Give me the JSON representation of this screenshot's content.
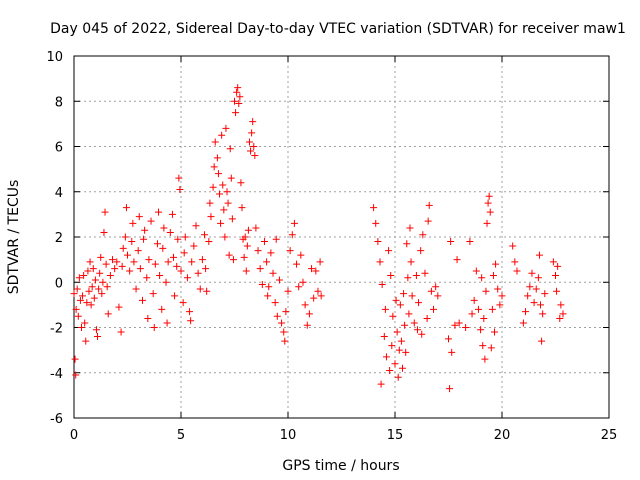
{
  "chart_data": {
    "type": "scatter",
    "title": "Day 045 of 2022, Sidereal Day-to-day VTEC variation (SDTVAR) for receiver maw1",
    "xlabel": "GPS time / hours",
    "ylabel": "SDTVAR / TECUs",
    "xlim": [
      0,
      25
    ],
    "ylim": [
      -6,
      10
    ],
    "xticks": [
      0,
      5,
      10,
      15,
      20,
      25
    ],
    "yticks": [
      -6,
      -4,
      -2,
      0,
      2,
      4,
      6,
      8,
      10
    ],
    "xtick_labels": [
      "0",
      "5",
      "10",
      "15",
      "20",
      "25"
    ],
    "ytick_labels": [
      "-6",
      "-4",
      "-2",
      "0",
      "2",
      "4",
      "6",
      "8",
      "10"
    ],
    "grid": true,
    "marker": "+",
    "color": "#ff0000",
    "series": [
      {
        "name": "SDTVAR",
        "points": [
          [
            0.0,
            -0.5
          ],
          [
            0.05,
            -3.4
          ],
          [
            0.08,
            -4.1
          ],
          [
            0.1,
            -1.2
          ],
          [
            0.15,
            -0.3
          ],
          [
            0.2,
            -1.5
          ],
          [
            0.25,
            0.2
          ],
          [
            0.3,
            -0.8
          ],
          [
            0.35,
            -2.0
          ],
          [
            0.4,
            -0.6
          ],
          [
            0.45,
            0.3
          ],
          [
            0.5,
            -1.8
          ],
          [
            0.55,
            -2.6
          ],
          [
            0.6,
            -0.9
          ],
          [
            0.65,
            0.5
          ],
          [
            0.7,
            -0.4
          ],
          [
            0.75,
            0.9
          ],
          [
            0.8,
            -1.0
          ],
          [
            0.85,
            -0.2
          ],
          [
            0.9,
            0.6
          ],
          [
            0.95,
            -0.7
          ],
          [
            1.0,
            0.1
          ],
          [
            1.05,
            -2.1
          ],
          [
            1.1,
            -2.4
          ],
          [
            1.15,
            -0.3
          ],
          [
            1.2,
            0.4
          ],
          [
            1.25,
            1.1
          ],
          [
            1.3,
            -0.5
          ],
          [
            1.35,
            0.0
          ],
          [
            1.4,
            2.2
          ],
          [
            1.45,
            3.1
          ],
          [
            1.5,
            0.8
          ],
          [
            1.55,
            -0.2
          ],
          [
            1.6,
            -1.4
          ],
          [
            1.7,
            0.3
          ],
          [
            1.8,
            1.0
          ],
          [
            1.9,
            0.6
          ],
          [
            2.0,
            0.9
          ],
          [
            2.1,
            -1.1
          ],
          [
            2.2,
            -2.2
          ],
          [
            2.25,
            0.7
          ],
          [
            2.3,
            1.5
          ],
          [
            2.4,
            2.0
          ],
          [
            2.45,
            3.3
          ],
          [
            2.5,
            1.2
          ],
          [
            2.6,
            0.5
          ],
          [
            2.7,
            1.8
          ],
          [
            2.75,
            2.6
          ],
          [
            2.8,
            0.9
          ],
          [
            2.9,
            -0.3
          ],
          [
            3.0,
            1.4
          ],
          [
            3.05,
            2.9
          ],
          [
            3.1,
            0.6
          ],
          [
            3.2,
            -0.8
          ],
          [
            3.25,
            1.9
          ],
          [
            3.3,
            2.3
          ],
          [
            3.4,
            0.2
          ],
          [
            3.45,
            -1.6
          ],
          [
            3.5,
            1.0
          ],
          [
            3.6,
            2.7
          ],
          [
            3.7,
            -0.5
          ],
          [
            3.75,
            -2.0
          ],
          [
            3.8,
            0.8
          ],
          [
            3.9,
            1.7
          ],
          [
            3.95,
            3.1
          ],
          [
            4.0,
            0.3
          ],
          [
            4.1,
            -1.2
          ],
          [
            4.15,
            1.5
          ],
          [
            4.2,
            2.4
          ],
          [
            4.3,
            0.0
          ],
          [
            4.35,
            -1.8
          ],
          [
            4.4,
            0.9
          ],
          [
            4.5,
            2.2
          ],
          [
            4.6,
            3.0
          ],
          [
            4.65,
            1.1
          ],
          [
            4.7,
            -0.6
          ],
          [
            4.8,
            0.7
          ],
          [
            4.85,
            1.9
          ],
          [
            4.9,
            4.6
          ],
          [
            4.95,
            4.1
          ],
          [
            5.0,
            0.5
          ],
          [
            5.1,
            -0.9
          ],
          [
            5.15,
            1.3
          ],
          [
            5.2,
            2.0
          ],
          [
            5.3,
            0.2
          ],
          [
            5.4,
            -1.3
          ],
          [
            5.45,
            -1.7
          ],
          [
            5.5,
            0.9
          ],
          [
            5.6,
            1.6
          ],
          [
            5.7,
            2.5
          ],
          [
            5.8,
            0.4
          ],
          [
            5.9,
            -0.3
          ],
          [
            6.0,
            1.0
          ],
          [
            6.1,
            2.1
          ],
          [
            6.15,
            0.6
          ],
          [
            6.2,
            -0.4
          ],
          [
            6.3,
            1.8
          ],
          [
            6.35,
            3.5
          ],
          [
            6.4,
            2.9
          ],
          [
            6.5,
            4.2
          ],
          [
            6.55,
            5.1
          ],
          [
            6.6,
            6.2
          ],
          [
            6.7,
            5.5
          ],
          [
            6.75,
            4.8
          ],
          [
            6.8,
            3.9
          ],
          [
            6.85,
            2.6
          ],
          [
            6.9,
            6.5
          ],
          [
            6.95,
            4.3
          ],
          [
            7.0,
            3.2
          ],
          [
            7.05,
            2.0
          ],
          [
            7.1,
            6.8
          ],
          [
            7.15,
            4.0
          ],
          [
            7.2,
            3.5
          ],
          [
            7.25,
            1.2
          ],
          [
            7.3,
            5.9
          ],
          [
            7.35,
            4.6
          ],
          [
            7.4,
            2.8
          ],
          [
            7.45,
            1.0
          ],
          [
            7.5,
            8.0
          ],
          [
            7.55,
            7.5
          ],
          [
            7.6,
            8.4
          ],
          [
            7.65,
            8.6
          ],
          [
            7.7,
            7.9
          ],
          [
            7.75,
            8.2
          ],
          [
            7.8,
            4.4
          ],
          [
            7.85,
            3.3
          ],
          [
            7.9,
            1.9
          ],
          [
            7.95,
            1.1
          ],
          [
            8.0,
            2.0
          ],
          [
            8.05,
            0.5
          ],
          [
            8.1,
            1.6
          ],
          [
            8.15,
            2.3
          ],
          [
            8.2,
            6.2
          ],
          [
            8.25,
            5.8
          ],
          [
            8.3,
            6.6
          ],
          [
            8.35,
            7.1
          ],
          [
            8.4,
            6.0
          ],
          [
            8.45,
            5.6
          ],
          [
            8.5,
            2.4
          ],
          [
            8.6,
            1.4
          ],
          [
            8.7,
            0.6
          ],
          [
            8.8,
            -0.1
          ],
          [
            8.9,
            1.8
          ],
          [
            9.0,
            0.9
          ],
          [
            9.05,
            -0.6
          ],
          [
            9.1,
            -0.2
          ],
          [
            9.2,
            1.3
          ],
          [
            9.3,
            0.4
          ],
          [
            9.4,
            -0.9
          ],
          [
            9.45,
            1.9
          ],
          [
            9.5,
            -1.5
          ],
          [
            9.6,
            0.1
          ],
          [
            9.7,
            -1.8
          ],
          [
            9.8,
            -2.2
          ],
          [
            9.85,
            -2.6
          ],
          [
            9.9,
            -1.3
          ],
          [
            10.0,
            -0.4
          ],
          [
            10.1,
            1.4
          ],
          [
            10.2,
            2.1
          ],
          [
            10.3,
            2.6
          ],
          [
            10.4,
            0.8
          ],
          [
            10.5,
            -0.2
          ],
          [
            10.6,
            1.2
          ],
          [
            10.7,
            0.0
          ],
          [
            10.8,
            -1.0
          ],
          [
            10.9,
            -1.9
          ],
          [
            11.0,
            -1.4
          ],
          [
            11.1,
            0.6
          ],
          [
            11.2,
            -0.7
          ],
          [
            11.3,
            0.5
          ],
          [
            11.4,
            -0.4
          ],
          [
            11.5,
            0.9
          ],
          [
            11.55,
            -0.6
          ],
          [
            14.0,
            3.3
          ],
          [
            14.1,
            2.6
          ],
          [
            14.2,
            1.8
          ],
          [
            14.3,
            0.9
          ],
          [
            14.35,
            -4.5
          ],
          [
            14.4,
            -0.1
          ],
          [
            14.5,
            -2.4
          ],
          [
            14.55,
            -1.2
          ],
          [
            14.6,
            -3.3
          ],
          [
            14.7,
            1.4
          ],
          [
            14.75,
            -3.9
          ],
          [
            14.8,
            0.3
          ],
          [
            14.85,
            -2.8
          ],
          [
            14.9,
            -1.5
          ],
          [
            15.0,
            -3.6
          ],
          [
            15.05,
            -0.8
          ],
          [
            15.1,
            -2.2
          ],
          [
            15.15,
            -4.2
          ],
          [
            15.2,
            -3.0
          ],
          [
            15.25,
            -1.0
          ],
          [
            15.3,
            -2.6
          ],
          [
            15.35,
            -3.8
          ],
          [
            15.4,
            -0.5
          ],
          [
            15.45,
            -1.9
          ],
          [
            15.5,
            -3.1
          ],
          [
            15.55,
            1.7
          ],
          [
            15.6,
            0.2
          ],
          [
            15.65,
            -1.4
          ],
          [
            15.7,
            2.4
          ],
          [
            15.75,
            0.9
          ],
          [
            15.8,
            -0.6
          ],
          [
            15.9,
            -1.8
          ],
          [
            16.0,
            0.3
          ],
          [
            16.05,
            -2.1
          ],
          [
            16.1,
            -0.9
          ],
          [
            16.2,
            1.4
          ],
          [
            16.25,
            -2.3
          ],
          [
            16.3,
            2.1
          ],
          [
            16.4,
            0.4
          ],
          [
            16.5,
            -1.6
          ],
          [
            16.55,
            2.7
          ],
          [
            16.6,
            3.4
          ],
          [
            16.7,
            -0.4
          ],
          [
            16.8,
            -1.2
          ],
          [
            16.9,
            -0.2
          ],
          [
            17.0,
            -0.6
          ],
          [
            17.5,
            -2.5
          ],
          [
            17.55,
            -4.7
          ],
          [
            17.6,
            1.8
          ],
          [
            17.65,
            -3.1
          ],
          [
            17.8,
            -1.9
          ],
          [
            17.9,
            1.0
          ],
          [
            18.0,
            -1.8
          ],
          [
            18.3,
            -2.0
          ],
          [
            18.5,
            1.8
          ],
          [
            18.6,
            -1.4
          ],
          [
            18.7,
            -0.8
          ],
          [
            18.8,
            0.5
          ],
          [
            18.9,
            -1.2
          ],
          [
            19.0,
            -2.1
          ],
          [
            19.05,
            0.2
          ],
          [
            19.1,
            -2.8
          ],
          [
            19.15,
            -1.6
          ],
          [
            19.2,
            -3.4
          ],
          [
            19.25,
            -0.4
          ],
          [
            19.3,
            2.6
          ],
          [
            19.35,
            3.5
          ],
          [
            19.4,
            3.8
          ],
          [
            19.45,
            3.1
          ],
          [
            19.5,
            -2.9
          ],
          [
            19.55,
            -1.2
          ],
          [
            19.6,
            0.3
          ],
          [
            19.65,
            -2.2
          ],
          [
            19.7,
            0.8
          ],
          [
            19.8,
            -0.3
          ],
          [
            19.9,
            -1.0
          ],
          [
            20.0,
            -0.6
          ],
          [
            20.5,
            1.6
          ],
          [
            20.6,
            0.9
          ],
          [
            20.7,
            0.5
          ],
          [
            21.0,
            -1.8
          ],
          [
            21.1,
            -1.3
          ],
          [
            21.2,
            -0.6
          ],
          [
            21.3,
            -0.2
          ],
          [
            21.4,
            0.4
          ],
          [
            21.5,
            -0.9
          ],
          [
            21.6,
            -0.3
          ],
          [
            21.7,
            0.2
          ],
          [
            21.75,
            1.2
          ],
          [
            21.8,
            -1.0
          ],
          [
            21.85,
            -2.6
          ],
          [
            21.9,
            -1.4
          ],
          [
            22.0,
            -0.5
          ],
          [
            22.4,
            0.9
          ],
          [
            22.5,
            0.3
          ],
          [
            22.55,
            -0.4
          ],
          [
            22.6,
            0.7
          ],
          [
            22.7,
            -1.6
          ],
          [
            22.75,
            -1.0
          ],
          [
            22.85,
            -1.4
          ]
        ]
      }
    ]
  }
}
